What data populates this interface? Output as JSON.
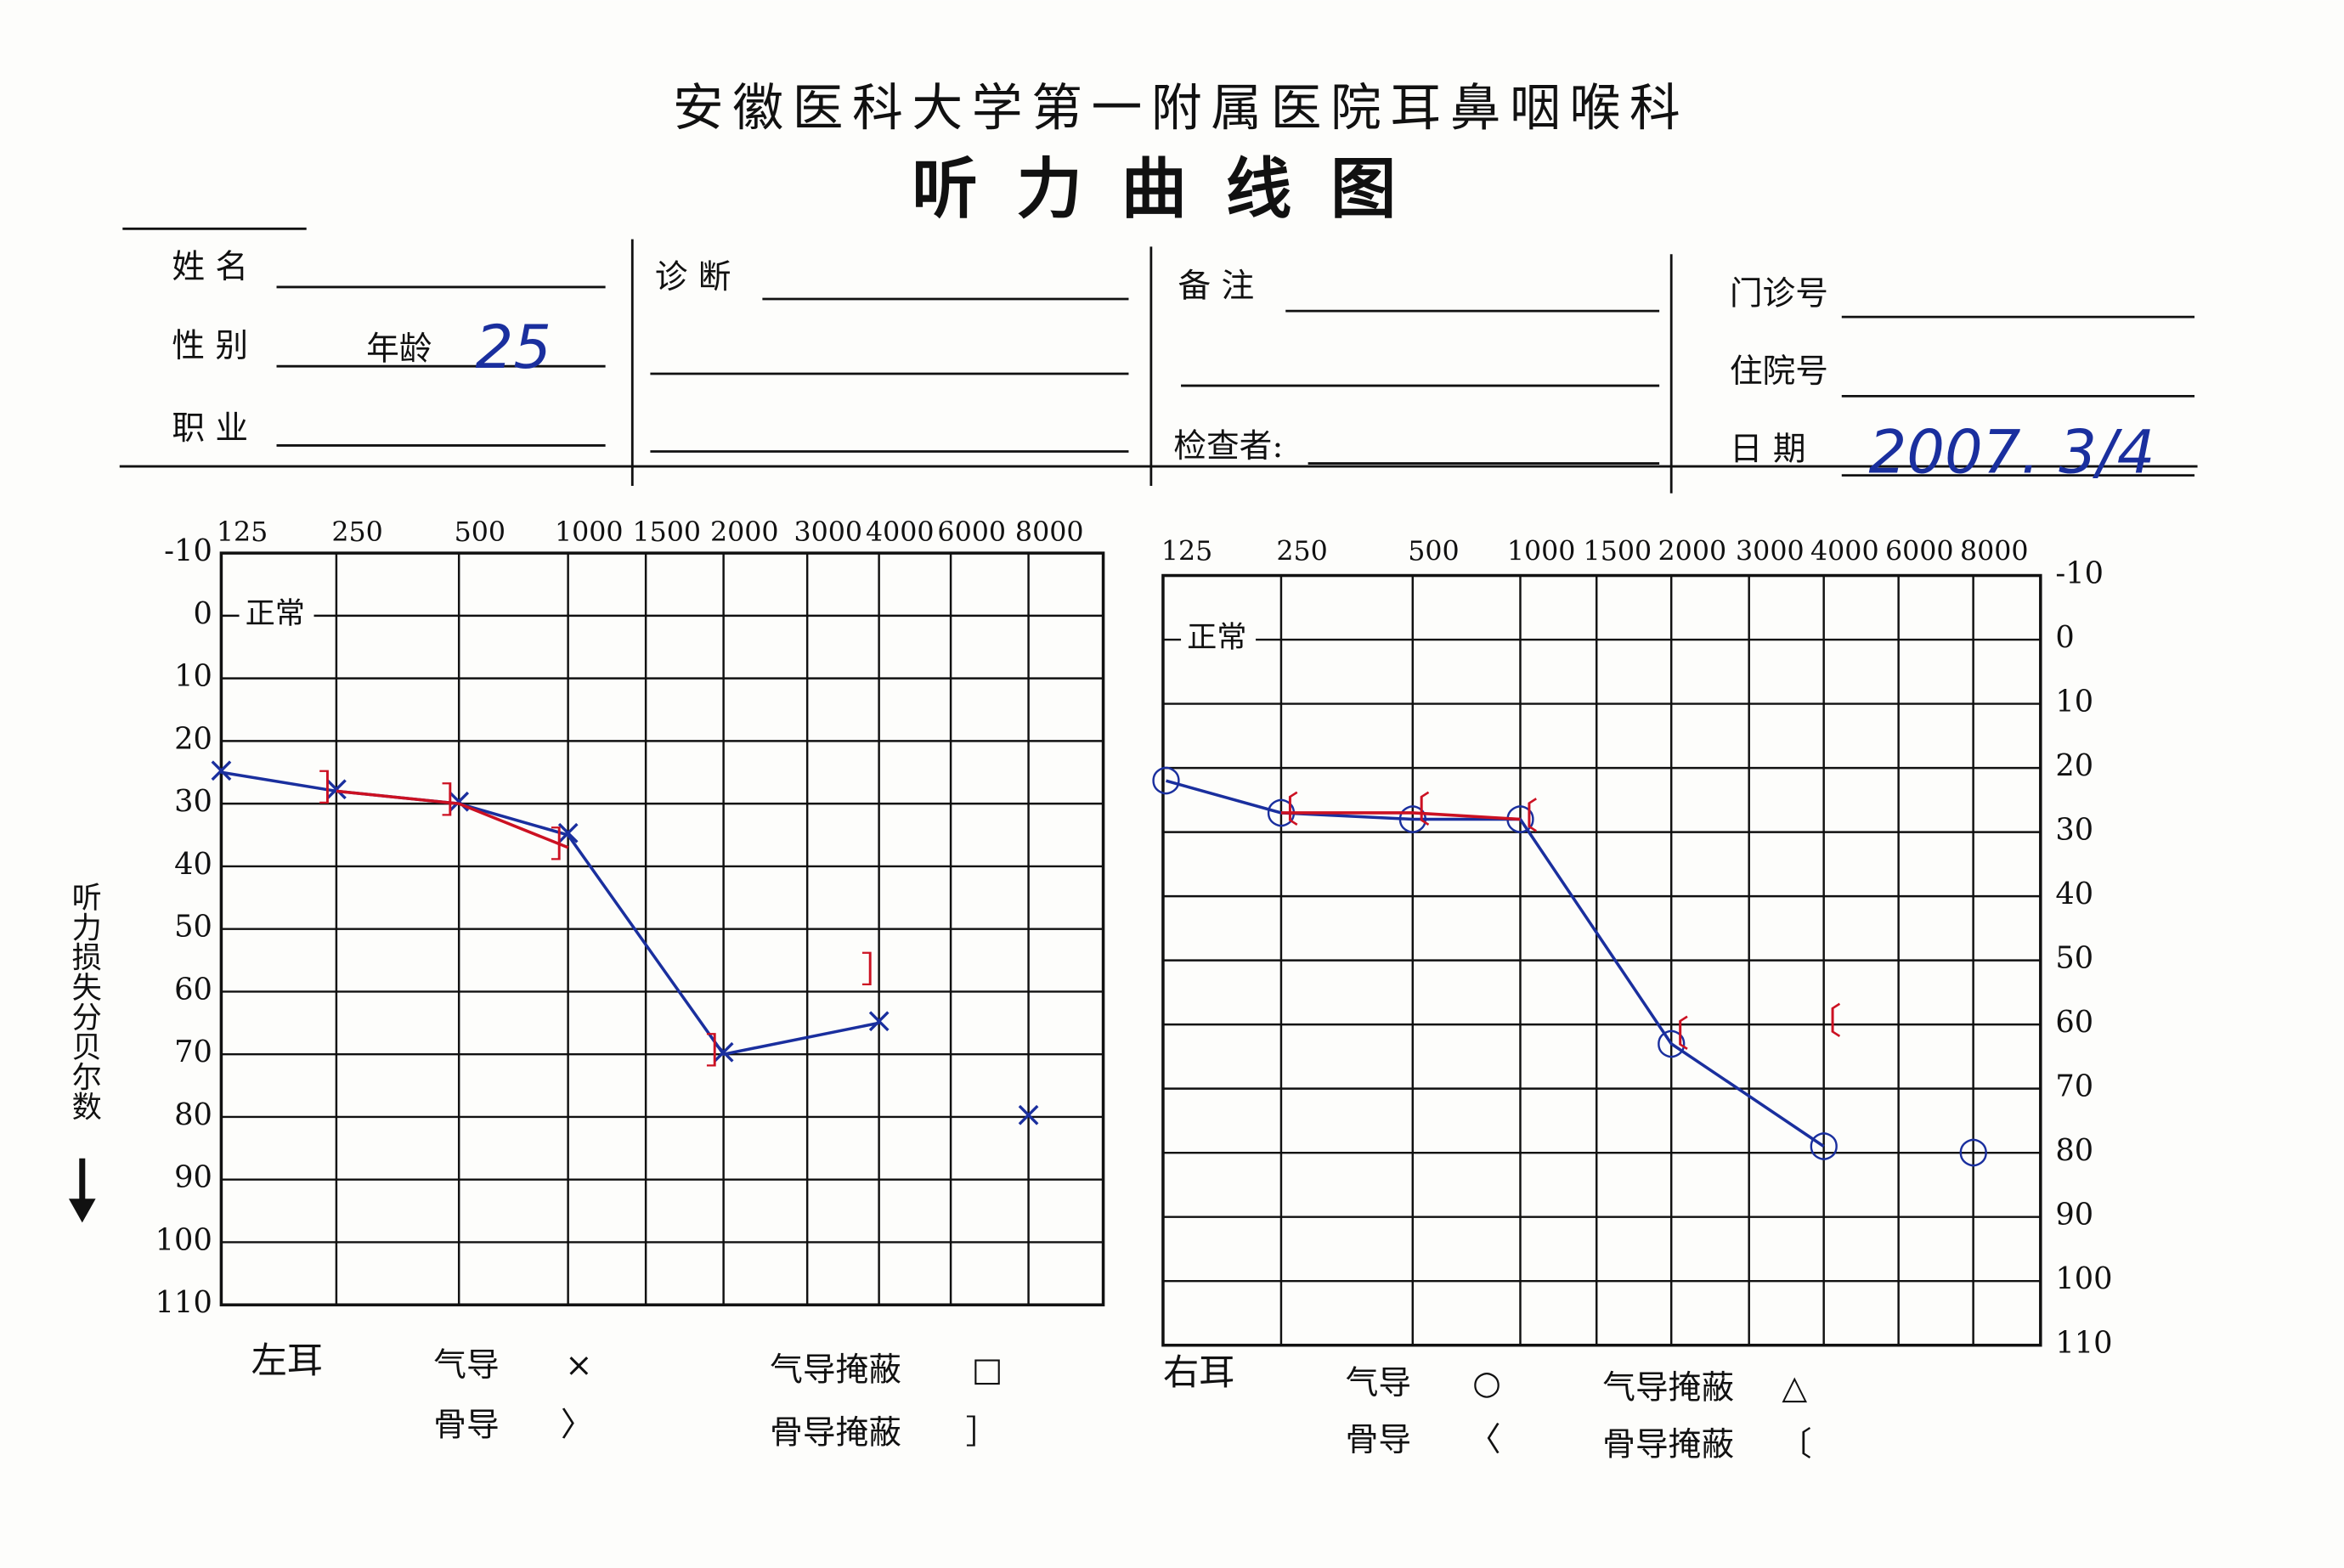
{
  "header": {
    "hospital": "安徽医科大学第一附属医院耳鼻咽喉科",
    "title": "听力曲线图"
  },
  "form": {
    "name_label": "姓 名",
    "sex_label": "性 别",
    "age_label": "年龄",
    "age": "25",
    "occupation_label": "职 业",
    "diagnosis_label": "诊 断",
    "remarks_label": "备 注",
    "examiner_label": "检查者:",
    "clinic_no_label": "门诊号",
    "inpatient_no_label": "住院号",
    "date_label": "日 期",
    "date": "2007. 3/4"
  },
  "y_axis_label": "听力损失分贝尔数",
  "chart_data": [
    {
      "type": "line",
      "title": "左耳",
      "normal_label": "正常",
      "xticks": [
        125,
        250,
        500,
        1000,
        1500,
        2000,
        3000,
        4000,
        6000,
        8000
      ],
      "ylim": [
        -10,
        110
      ],
      "yticks": [
        -10,
        0,
        10,
        20,
        30,
        40,
        50,
        60,
        70,
        80,
        90,
        100,
        110
      ],
      "y_inverted": true,
      "y_axis_side": "left",
      "grid": true,
      "series": [
        {
          "name": "气导",
          "symbol": "×",
          "color": "#1a2f9e",
          "x": [
            125,
            250,
            500,
            1000,
            2000,
            4000,
            6000,
            8000
          ],
          "values": [
            25,
            28,
            30,
            35,
            70,
            65,
            null,
            80
          ]
        },
        {
          "name": "骨导",
          "symbol": "〉",
          "color": "#1a2f9e",
          "x": [],
          "values": []
        },
        {
          "name": "气导掩蔽",
          "symbol": "□",
          "color": "#1a2f9e",
          "x": [],
          "values": []
        },
        {
          "name": "骨导掩蔽",
          "symbol": "］",
          "color": "#cc1122",
          "x": [
            250,
            500,
            1000,
            1500,
            2000,
            3000,
            4000
          ],
          "values": [
            28,
            30,
            37,
            null,
            70,
            null,
            57
          ]
        }
      ]
    },
    {
      "type": "line",
      "title": "右耳",
      "normal_label": "正常",
      "xticks": [
        125,
        250,
        500,
        1000,
        1500,
        2000,
        3000,
        4000,
        6000,
        8000
      ],
      "ylim": [
        -10,
        110
      ],
      "yticks": [
        -10,
        0,
        10,
        20,
        30,
        40,
        50,
        60,
        70,
        80,
        90,
        100,
        110
      ],
      "y_inverted": true,
      "y_axis_side": "right",
      "grid": true,
      "series": [
        {
          "name": "气导",
          "symbol": "○",
          "color": "#1a2f9e",
          "x": [
            125,
            250,
            500,
            1000,
            2000,
            4000,
            6000,
            8000
          ],
          "values": [
            22,
            27,
            28,
            28,
            63,
            79,
            null,
            80
          ]
        },
        {
          "name": "骨导",
          "symbol": "〈",
          "color": "#1a2f9e",
          "x": [],
          "values": []
        },
        {
          "name": "气导掩蔽",
          "symbol": "△",
          "color": "#1a2f9e",
          "x": [],
          "values": []
        },
        {
          "name": "骨导掩蔽",
          "symbol": "〔",
          "color": "#cc1122",
          "x": [
            250,
            500,
            1000,
            1500,
            2000,
            3000,
            4000
          ],
          "values": [
            27,
            27,
            28,
            null,
            62,
            null,
            60
          ]
        }
      ]
    }
  ]
}
